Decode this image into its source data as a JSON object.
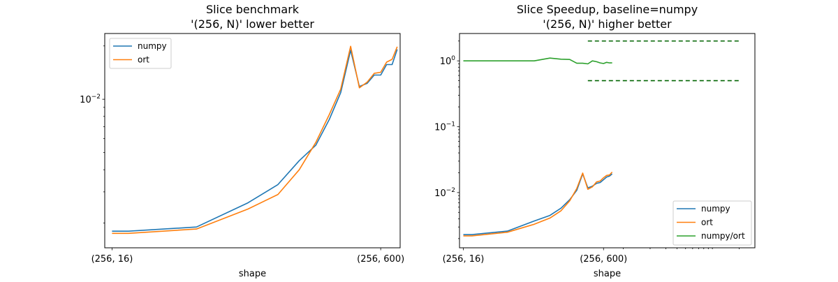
{
  "chart_data": [
    {
      "type": "line",
      "title": "Slice benchmark",
      "subtitle": "'(256, N)' lower better",
      "xlabel": "shape",
      "ylabel": "",
      "x_scale": "log",
      "y_scale": "log",
      "xlim": [
        14.5,
        780
      ],
      "ylim": [
        0.00145,
        0.0235
      ],
      "x_ticks": [
        {
          "x": 16,
          "label": "(256, 16)"
        },
        {
          "x": 600,
          "label": "(256, 600)"
        }
      ],
      "y_ticks": [
        {
          "y": 0.01,
          "base": "10",
          "exp": "−2"
        }
      ],
      "grid": false,
      "legend_position": "top-left",
      "x": [
        16,
        20,
        50,
        100,
        150,
        200,
        250,
        300,
        350,
        400,
        450,
        500,
        550,
        600,
        650,
        700,
        750
      ],
      "series": [
        {
          "name": "numpy",
          "color": "#1f77b4",
          "values": [
            0.0018,
            0.0018,
            0.0019,
            0.0026,
            0.0033,
            0.0045,
            0.0055,
            0.0077,
            0.0109,
            0.0189,
            0.0118,
            0.0123,
            0.0137,
            0.0137,
            0.0157,
            0.0157,
            0.0191
          ]
        },
        {
          "name": "ort",
          "color": "#ff7f0e",
          "values": [
            0.00175,
            0.00175,
            0.00185,
            0.0024,
            0.0029,
            0.004,
            0.0057,
            0.0082,
            0.0114,
            0.0199,
            0.0116,
            0.0125,
            0.014,
            0.0142,
            0.0162,
            0.0168,
            0.0198
          ]
        }
      ]
    },
    {
      "type": "line",
      "title": "Slice Speedup, baseline=numpy",
      "subtitle": "'(256, N)' higher better",
      "xlabel": "shape",
      "ylabel": "",
      "x_scale": "log",
      "y_scale": "log",
      "xlim": [
        14.5,
        30000
      ],
      "ylim": [
        0.00145,
        2.6
      ],
      "x_ticks": [
        {
          "x": 16,
          "label": "(256, 16)"
        },
        {
          "x": 600,
          "label": "(256, 600)"
        }
      ],
      "x_minor_ticks": [
        1000,
        2000,
        3000,
        4000,
        5000,
        6000,
        7000,
        8000,
        9000,
        10000,
        20000
      ],
      "y_ticks": [
        {
          "y": 0.01,
          "base": "10",
          "exp": "−2"
        },
        {
          "y": 0.1,
          "base": "10",
          "exp": "−1"
        },
        {
          "y": 1,
          "base": "10",
          "exp": "0",
          "plain": "10"
        }
      ],
      "grid": false,
      "legend_position": "lower-right",
      "x": [
        16,
        20,
        50,
        100,
        150,
        200,
        250,
        300,
        350,
        400,
        450,
        500,
        550,
        600,
        650,
        700,
        750
      ],
      "series": [
        {
          "name": "numpy",
          "color": "#1f77b4",
          "values": [
            0.0023,
            0.0023,
            0.0026,
            0.0037,
            0.0045,
            0.0058,
            0.0078,
            0.0108,
            0.0192,
            0.0118,
            0.0125,
            0.0138,
            0.0142,
            0.0157,
            0.0172,
            0.0178,
            0.0192
          ]
        },
        {
          "name": "ort",
          "color": "#ff7f0e",
          "values": [
            0.0022,
            0.0022,
            0.0025,
            0.0033,
            0.0041,
            0.0053,
            0.0075,
            0.0115,
            0.0198,
            0.0112,
            0.0122,
            0.0145,
            0.015,
            0.0168,
            0.0182,
            0.0185,
            0.0205
          ]
        },
        {
          "name": "numpy/ort",
          "color": "#2ca02c",
          "values": [
            1.0,
            1.0,
            1.0,
            1.0,
            1.1,
            1.06,
            1.05,
            0.92,
            0.92,
            0.9,
            1.0,
            0.97,
            0.93,
            0.91,
            0.95,
            0.93,
            0.93
          ]
        }
      ],
      "reference_lines": [
        {
          "y": 2.0,
          "x_range": [
            400,
            20000
          ],
          "color": "#006400",
          "style": "dashed"
        },
        {
          "y": 0.5,
          "x_range": [
            400,
            20000
          ],
          "color": "#006400",
          "style": "dashed"
        }
      ]
    }
  ]
}
